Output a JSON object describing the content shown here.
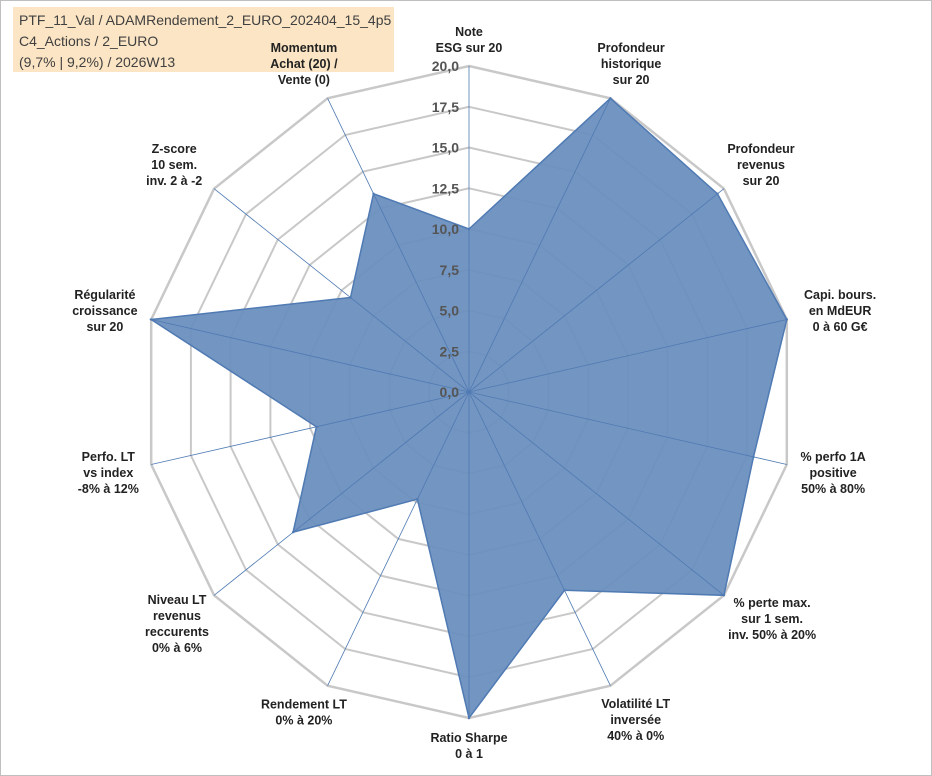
{
  "info": {
    "line1": "PTF_11_Val / ADAMRendement_2_EURO_202404_15_4p5",
    "line2": "C4_Actions / 2_EURO",
    "line3": "(9,7% | 9,2%) / 2026W13"
  },
  "colors": {
    "fill": "#6b8fbe",
    "stroke": "#4f7ab3",
    "grid": "#c8c8c8",
    "spoke": "#4f7ab3",
    "info_bg": "#fbe5c4",
    "momentum": "#a6a69c"
  },
  "chart_data": {
    "type": "radar",
    "title": "",
    "rmin": 0,
    "rmax": 20,
    "tick_labels": [
      "0,0",
      "2,5",
      "5,0",
      "7,5",
      "10,0",
      "12,5",
      "15,0",
      "17,5",
      "20,0"
    ],
    "categories": [
      {
        "lines": [
          "Note",
          "ESG sur 20"
        ]
      },
      {
        "lines": [
          "Profondeur",
          "historique",
          "sur 20"
        ]
      },
      {
        "lines": [
          "Profondeur",
          "revenus",
          "sur 20"
        ]
      },
      {
        "lines": [
          "Capi. bours.",
          "en MdEUR",
          "0 à 60 G€"
        ]
      },
      {
        "lines": [
          "% perfo 1A",
          "positive",
          "50% à 80%"
        ]
      },
      {
        "lines": [
          "% perte max.",
          "sur 1 sem.",
          "inv. 50% à 20%"
        ]
      },
      {
        "lines": [
          "Volatilité LT",
          "inversée",
          "40% à 0%"
        ]
      },
      {
        "lines": [
          "Ratio Sharpe",
          "0 à 1"
        ]
      },
      {
        "lines": [
          "Rendement LT",
          "0% à 20%"
        ]
      },
      {
        "lines": [
          "Niveau LT",
          "revenus",
          "reccurents",
          "0% à 6%"
        ]
      },
      {
        "lines": [
          "Perfo. LT",
          "vs index",
          "-8% à 12%"
        ]
      },
      {
        "lines": [
          "Régularité",
          "croissance",
          "sur 20"
        ]
      },
      {
        "lines": [
          "Z-score",
          "10 sem.",
          "inv. 2 à -2"
        ]
      },
      {
        "lines": [
          "Momentum",
          "Achat (20) /",
          "Vente (0)"
        ]
      }
    ],
    "series": [
      {
        "name": "PTF_11_Val",
        "values": [
          10.0,
          20.0,
          19.5,
          20.0,
          17.9,
          20.0,
          13.5,
          20.0,
          7.3,
          13.8,
          9.6,
          20.0,
          9.3,
          13.5
        ]
      }
    ]
  }
}
